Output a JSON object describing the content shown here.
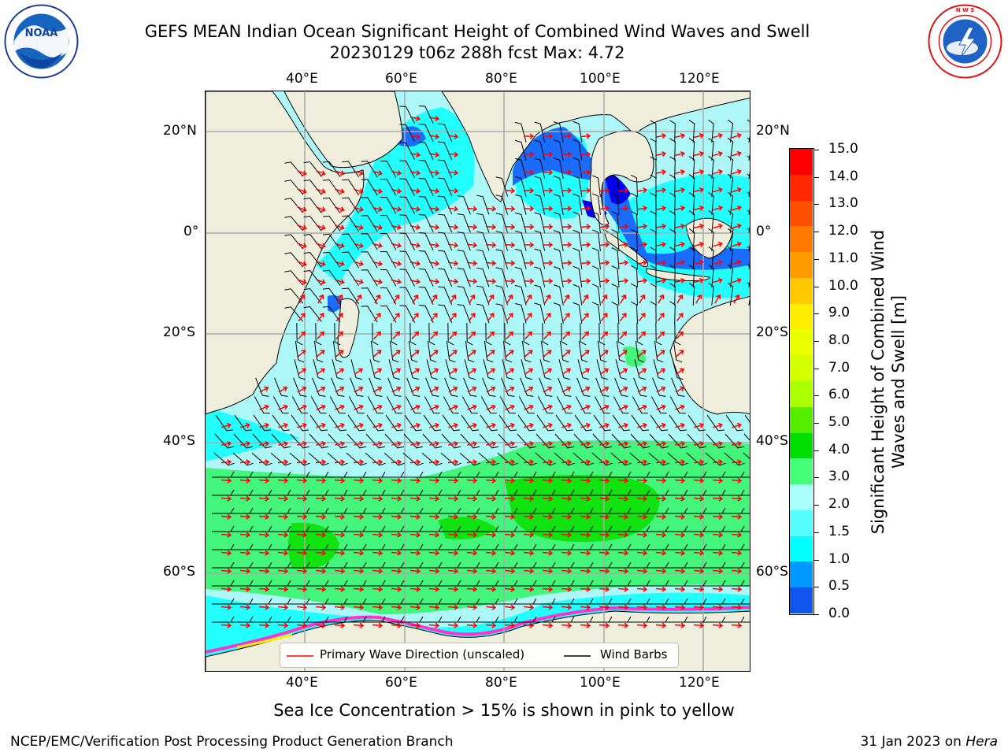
{
  "title": {
    "line1": "GEFS MEAN Indian Ocean Significant Height of Combined Wind Waves and Swell",
    "line2": "20230129 t06z 288h fcst   Max: 4.72"
  },
  "logos": {
    "left": {
      "name": "noaa-logo",
      "text": "NOAA"
    },
    "right": {
      "name": "nws-logo",
      "text": "NATIONAL WEATHER SERVICE"
    }
  },
  "axes": {
    "top_lon": [
      "40°E",
      "60°E",
      "80°E",
      "100°E",
      "120°E"
    ],
    "bottom_lon": [
      "40°E",
      "60°E",
      "80°E",
      "100°E",
      "120°E"
    ],
    "left_lat": [
      "20°N",
      "0°",
      "20°S",
      "40°S",
      "60°S"
    ],
    "right_lat": [
      "20°N",
      "0°",
      "20°S",
      "40°S",
      "60°S"
    ]
  },
  "legend": {
    "wave_label": "Primary Wave Direction (unscaled)",
    "barb_label": "Wind Barbs",
    "wave_color": "#ff0000",
    "barb_color": "#000000"
  },
  "colorbar": {
    "label": "Significant Height of Combined Wind Waves and Swell [m]",
    "ticks": [
      "15.0",
      "14.0",
      "13.0",
      "12.0",
      "11.0",
      "10.0",
      "9.0",
      "8.0",
      "7.0",
      "6.0",
      "5.0",
      "4.0",
      "3.0",
      "2.0",
      "1.5",
      "1.0",
      "0.5",
      "0.0"
    ],
    "colors_top_to_bottom": [
      "#ff0000",
      "#ff2800",
      "#ff5000",
      "#ff7800",
      "#ff9b00",
      "#ffc800",
      "#ffee00",
      "#eaff00",
      "#d4ff00",
      "#aaff00",
      "#55ee00",
      "#00dd00",
      "#44ff77",
      "#aaffff",
      "#55ffff",
      "#00ffff",
      "#0099ff",
      "#1155ee",
      "#0000ff"
    ]
  },
  "colors": {
    "land": "#efeedd",
    "ocean_light": "#aef7f8",
    "ocean_cyan": "#22ffff",
    "ocean_blue": "#1a6cff",
    "ocean_deep": "#0000ee",
    "wave_green": "#44f57c",
    "wave_bright": "#11e311",
    "ice_pink": "#ff33cc",
    "ice_yellow": "#ffee00"
  },
  "note": "Sea Ice Concentration > 15% is shown in pink to yellow",
  "footer": {
    "left": "NCEP/EMC/Verification Post Processing Product Generation Branch",
    "right_prefix": "31 Jan 2023 on ",
    "right_machine": "Hera"
  }
}
